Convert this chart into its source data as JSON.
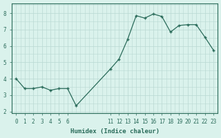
{
  "x": [
    0,
    1,
    2,
    3,
    4,
    5,
    6,
    7,
    11,
    12,
    13,
    14,
    15,
    16,
    17,
    18,
    19,
    20,
    21,
    22,
    23
  ],
  "y": [
    4.0,
    3.4,
    3.4,
    3.5,
    3.3,
    3.4,
    3.4,
    2.35,
    4.6,
    5.2,
    6.4,
    7.85,
    7.7,
    7.95,
    7.8,
    6.85,
    7.25,
    7.3,
    7.3,
    6.55,
    5.75
  ],
  "xlim": [
    -0.5,
    23.5
  ],
  "ylim": [
    1.9,
    8.6
  ],
  "yticks": [
    2,
    3,
    4,
    5,
    6,
    7,
    8
  ],
  "xticks": [
    0,
    1,
    2,
    3,
    4,
    5,
    6,
    11,
    12,
    13,
    14,
    15,
    16,
    17,
    18,
    19,
    20,
    21,
    22,
    23
  ],
  "xlabel": "Humidex (Indice chaleur)",
  "line_color": "#2a6b5a",
  "marker": "+",
  "marker_size": 3.5,
  "marker_lw": 1.0,
  "line_width": 0.9,
  "bg_color": "#daf2ec",
  "grid_color": "#b8d8d2",
  "axis_color": "#2a6b5a",
  "tick_color": "#2a6b5a",
  "label_color": "#2a6b5a",
  "tick_fontsize": 5.5,
  "label_fontsize": 6.5
}
